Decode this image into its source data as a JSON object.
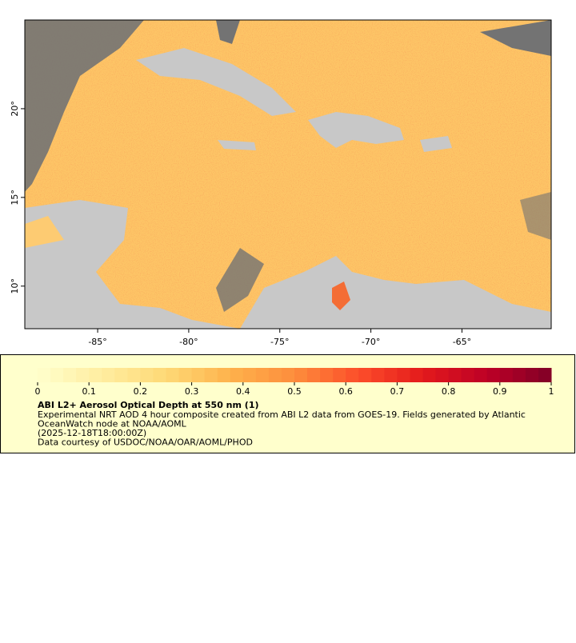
{
  "map": {
    "xlim": [
      -89,
      -60.1
    ],
    "ylim": [
      7.6,
      25
    ],
    "xticks": [
      {
        "value": -85,
        "label": "-85°"
      },
      {
        "value": -80,
        "label": "-80°"
      },
      {
        "value": -75,
        "label": "-75°"
      },
      {
        "value": -70,
        "label": "-70°"
      },
      {
        "value": -65,
        "label": "-65°"
      }
    ],
    "yticks": [
      {
        "value": 10,
        "label": "10°"
      },
      {
        "value": 15,
        "label": "15°"
      },
      {
        "value": 20,
        "label": "20°"
      }
    ]
  },
  "colorbar": {
    "range": [
      0,
      1
    ],
    "ticks": [
      0,
      0.1,
      0.2,
      0.3,
      0.4,
      0.5,
      0.6,
      0.7,
      0.8,
      0.9,
      1
    ],
    "colors": [
      "#ffffcc",
      "#ffeda0",
      "#fed976",
      "#feb24c",
      "#fd8d3c",
      "#fc4e2a",
      "#e31a1c",
      "#bd0026",
      "#800026"
    ]
  },
  "legend": {
    "title": "ABI L2+ Aerosol Optical Depth at 550 nm (1)",
    "lines": [
      "Experimental NRT AOD 4 hour composite created from ABI L2 data from GOES-19. Fields generated by Atlantic",
      "OceanWatch node at NOAA/AOML",
      "(2025-12-18T18:00:00Z)",
      "Data courtesy of USDOC/NOAA/OAR/AOML/PHOD"
    ]
  }
}
